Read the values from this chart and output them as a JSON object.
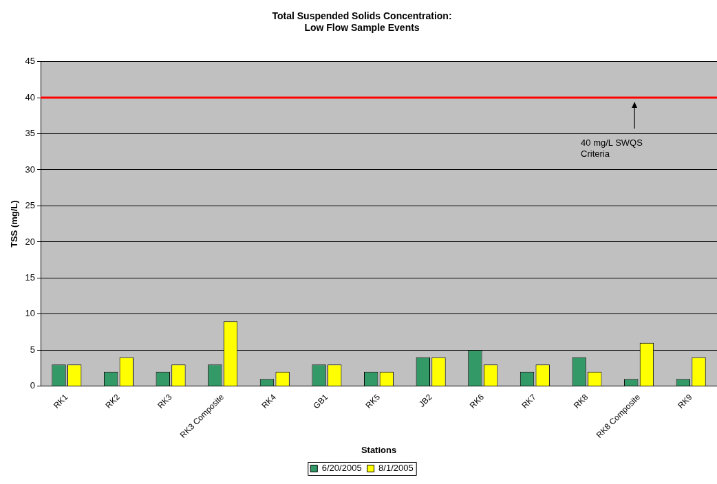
{
  "chart_data": {
    "type": "bar",
    "title": "Total Suspended Solids Concentration:\nLow Flow Sample Events",
    "xlabel": "Stations",
    "ylabel": "TSS (mg/L)",
    "categories": [
      "RK1",
      "RK2",
      "RK3",
      "RK3 Composite",
      "RK4",
      "GB1",
      "RK5",
      "JB2",
      "RK6",
      "RK7",
      "RK8",
      "RK8 Composite",
      "RK9"
    ],
    "series": [
      {
        "name": "6/20/2005",
        "color": "#339966",
        "values": [
          3,
          2,
          2,
          3,
          1,
          3,
          2,
          4,
          5,
          2,
          4,
          1,
          1
        ]
      },
      {
        "name": "8/1/2005",
        "color": "#ffff00",
        "values": [
          3,
          4,
          3,
          9,
          2,
          3,
          2,
          4,
          3,
          3,
          2,
          6,
          4
        ]
      }
    ],
    "ylim": [
      0,
      45
    ],
    "yticks": [
      0,
      5,
      10,
      15,
      20,
      25,
      30,
      35,
      40,
      45
    ],
    "grid": "y",
    "legend": "bottom",
    "ref_lines": [
      {
        "axis": "y",
        "value": 40,
        "label": "40 mg/L SWQS Criteria",
        "color": "#ff0000"
      }
    ]
  }
}
